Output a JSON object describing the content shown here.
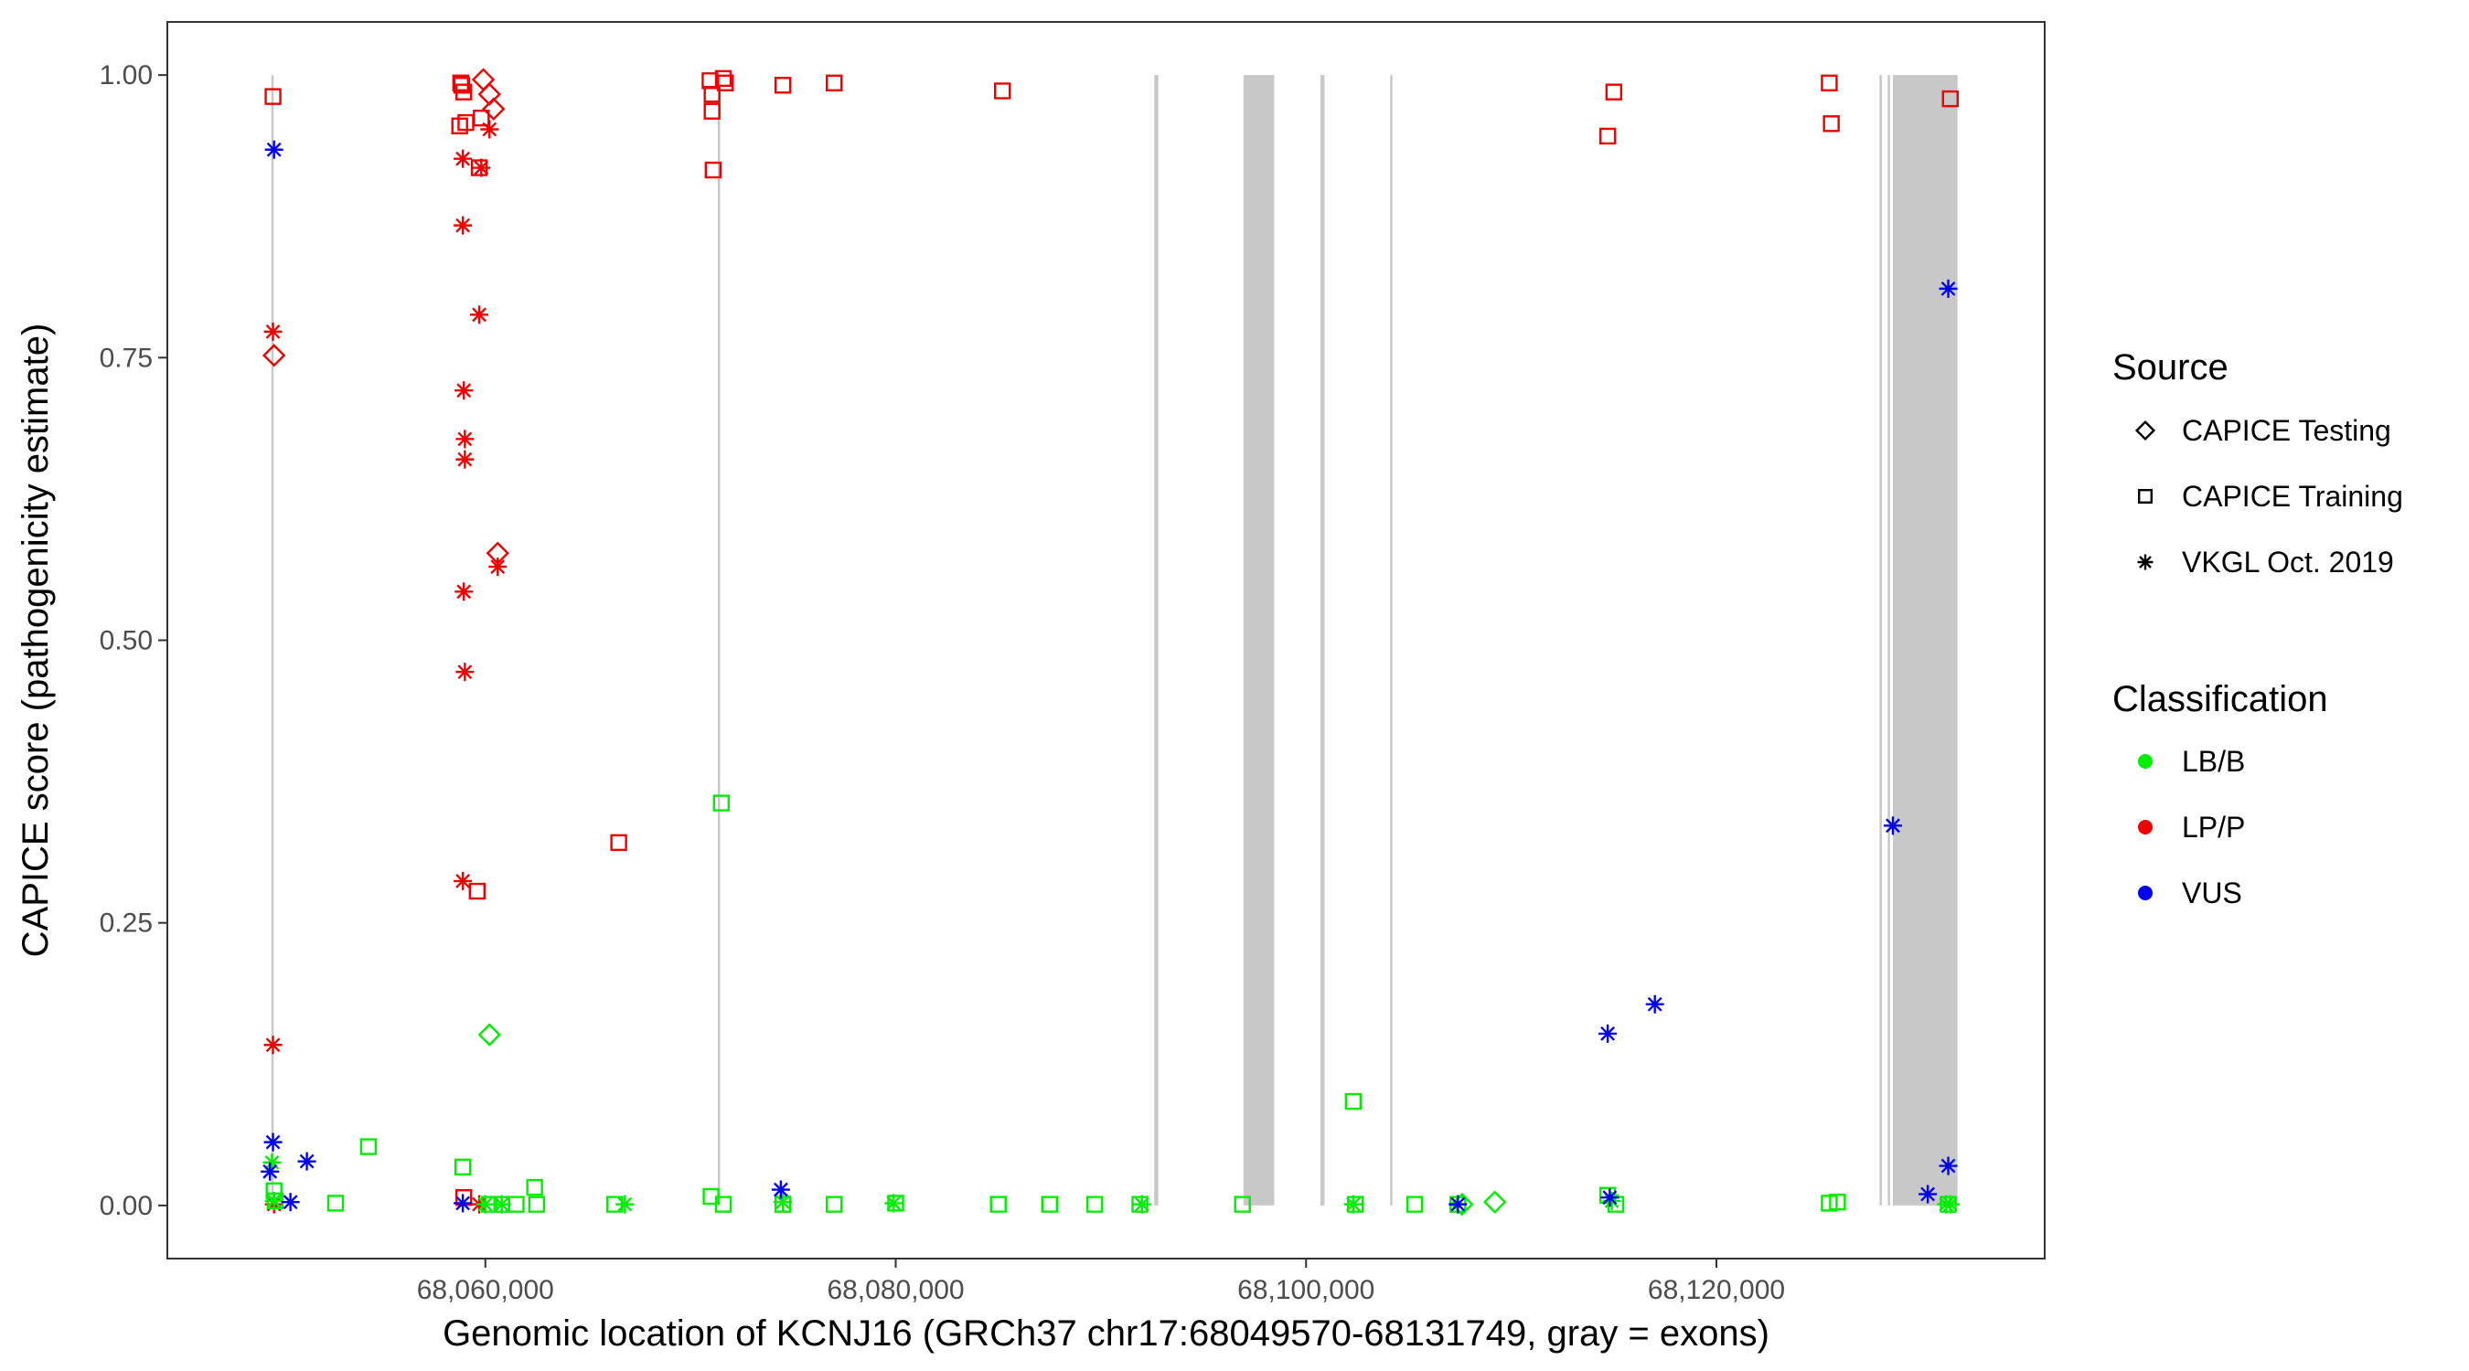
{
  "chart_data": {
    "type": "scatter",
    "xlabel": "Genomic location of KCNJ16 (GRCh37 chr17:68049570-68131749, gray = exons)",
    "ylabel": "CAPICE score (pathogenicity estimate)",
    "xlim": [
      68044500,
      68136000
    ],
    "ylim": [
      -0.047,
      1.047
    ],
    "x_ticks": [
      68060000,
      68080000,
      68100000,
      68120000
    ],
    "x_tick_labels": [
      "68,060,000",
      "68,080,000",
      "68,100,000",
      "68,120,000"
    ],
    "y_ticks": [
      0,
      0.25,
      0.5,
      0.75,
      1
    ],
    "y_tick_labels": [
      "0.00",
      "0.25",
      "0.50",
      "0.75",
      "1.00"
    ],
    "grid": false,
    "legend_position": "right",
    "exons": [
      [
        68049570,
        68049680
      ],
      [
        68071330,
        68071430
      ],
      [
        68092600,
        68092800
      ],
      [
        68096950,
        68098450
      ],
      [
        68100700,
        68100900
      ],
      [
        68104100,
        68104200
      ],
      [
        68127950,
        68128020
      ],
      [
        68128350,
        68128420
      ],
      [
        68128600,
        68131749
      ]
    ],
    "legends": {
      "source": {
        "title": "Source",
        "entries": [
          {
            "key": "testing",
            "label": "CAPICE Testing",
            "shape": "diamond"
          },
          {
            "key": "training",
            "label": "CAPICE Training",
            "shape": "square"
          },
          {
            "key": "vkgl",
            "label": "VKGL Oct. 2019",
            "shape": "asterisk"
          }
        ]
      },
      "classification": {
        "title": "Classification",
        "entries": [
          {
            "key": "lbb",
            "label": "LB/B",
            "color": "#00ee00"
          },
          {
            "key": "lpp",
            "label": "LP/P",
            "color": "#ee0000"
          },
          {
            "key": "vus",
            "label": "VUS",
            "color": "#0000ee"
          }
        ]
      }
    },
    "series": [
      {
        "source": "training",
        "class": "lpp",
        "points": [
          [
            68049650,
            0.981
          ],
          [
            68058800,
            0.993
          ],
          [
            68058850,
            0.991
          ],
          [
            68058950,
            0.985
          ],
          [
            68058750,
            0.955
          ],
          [
            68059050,
            0.958
          ],
          [
            68059700,
            0.918
          ],
          [
            68059800,
            0.962
          ],
          [
            68059600,
            0.278
          ],
          [
            68058950,
            0.007
          ],
          [
            68066500,
            0.321
          ],
          [
            68070950,
            0.995
          ],
          [
            68071050,
            0.983
          ],
          [
            68071050,
            0.968
          ],
          [
            68071100,
            0.916
          ],
          [
            68071600,
            0.997
          ],
          [
            68071700,
            0.993
          ],
          [
            68074500,
            0.991
          ],
          [
            68077000,
            0.993
          ],
          [
            68085200,
            0.986
          ],
          [
            68114700,
            0.946
          ],
          [
            68115000,
            0.985
          ],
          [
            68125500,
            0.993
          ],
          [
            68125600,
            0.957
          ],
          [
            68131400,
            0.979
          ]
        ]
      },
      {
        "source": "testing",
        "class": "lpp",
        "points": [
          [
            68049700,
            0.752
          ],
          [
            68059900,
            0.996
          ],
          [
            68060200,
            0.983
          ],
          [
            68060400,
            0.97
          ],
          [
            68060600,
            0.577
          ]
        ]
      },
      {
        "source": "vkgl",
        "class": "lpp",
        "points": [
          [
            68049650,
            0.773
          ],
          [
            68049650,
            0.142
          ],
          [
            68049700,
            0.001
          ],
          [
            68058900,
            0.926
          ],
          [
            68058900,
            0.867
          ],
          [
            68058950,
            0.721
          ],
          [
            68059000,
            0.678
          ],
          [
            68059000,
            0.66
          ],
          [
            68058950,
            0.543
          ],
          [
            68059000,
            0.472
          ],
          [
            68058900,
            0.287
          ],
          [
            68059700,
            0.788
          ],
          [
            68059800,
            0.918
          ],
          [
            68060200,
            0.952
          ],
          [
            68060600,
            0.565
          ],
          [
            68059700,
            0.001
          ]
        ]
      },
      {
        "source": "training",
        "class": "lbb",
        "points": [
          [
            68049700,
            0.013
          ],
          [
            68049750,
            0.004
          ],
          [
            68052700,
            0.002
          ],
          [
            68054300,
            0.052
          ],
          [
            68058900,
            0.034
          ],
          [
            68060200,
            0.001
          ],
          [
            68060800,
            0.001
          ],
          [
            68061500,
            0.001
          ],
          [
            68062400,
            0.016
          ],
          [
            68062500,
            0.001
          ],
          [
            68066300,
            0.001
          ],
          [
            68071000,
            0.008
          ],
          [
            68071500,
            0.356
          ],
          [
            68071600,
            0.001
          ],
          [
            68074500,
            0.001
          ],
          [
            68077000,
            0.001
          ],
          [
            68080000,
            0.002
          ],
          [
            68085000,
            0.001
          ],
          [
            68087500,
            0.001
          ],
          [
            68089700,
            0.001
          ],
          [
            68091900,
            0.001
          ],
          [
            68096900,
            0.001
          ],
          [
            68102300,
            0.092
          ],
          [
            68102400,
            0.001
          ],
          [
            68105300,
            0.001
          ],
          [
            68107400,
            0.001
          ],
          [
            68114700,
            0.009
          ],
          [
            68115100,
            0.001
          ],
          [
            68125500,
            0.002
          ],
          [
            68125900,
            0.003
          ],
          [
            68131300,
            0.001
          ]
        ]
      },
      {
        "source": "testing",
        "class": "lbb",
        "points": [
          [
            68060200,
            0.151
          ],
          [
            68107600,
            0.001
          ],
          [
            68109200,
            0.003
          ]
        ]
      },
      {
        "source": "vkgl",
        "class": "lbb",
        "points": [
          [
            68049600,
            0.038
          ],
          [
            68049700,
            0.004
          ],
          [
            68060000,
            0.001
          ],
          [
            68060800,
            0.001
          ],
          [
            68066800,
            0.001
          ],
          [
            68074500,
            0.003
          ],
          [
            68079900,
            0.002
          ],
          [
            68092000,
            0.001
          ],
          [
            68102300,
            0.001
          ],
          [
            68114900,
            0.004
          ],
          [
            68131200,
            0.001
          ],
          [
            68131400,
            0.001
          ]
        ]
      },
      {
        "source": "vkgl",
        "class": "vus",
        "points": [
          [
            68049700,
            0.934
          ],
          [
            68049650,
            0.056
          ],
          [
            68049500,
            0.03
          ],
          [
            68050500,
            0.003
          ],
          [
            68051300,
            0.039
          ],
          [
            68058900,
            0.002
          ],
          [
            68074400,
            0.014
          ],
          [
            68107400,
            0.001
          ],
          [
            68114700,
            0.152
          ],
          [
            68114800,
            0.007
          ],
          [
            68117000,
            0.178
          ],
          [
            68128600,
            0.336
          ],
          [
            68130300,
            0.01
          ],
          [
            68131300,
            0.811
          ],
          [
            68131300,
            0.035
          ]
        ]
      }
    ]
  }
}
